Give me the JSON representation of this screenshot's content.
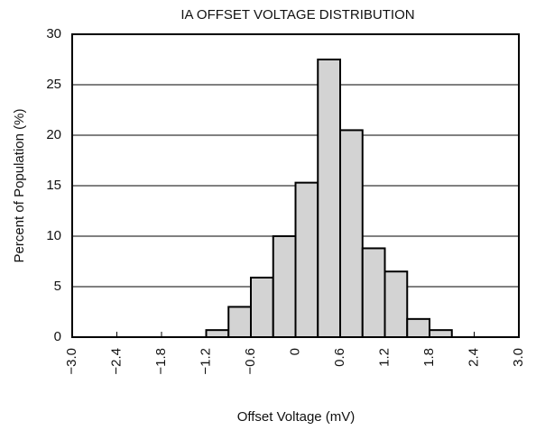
{
  "chart_data": {
    "type": "histogram",
    "title": "IA OFFSET VOLTAGE DISTRIBUTION",
    "x_label": "Offset Voltage (mV)",
    "y_label": "Percent of Population (%)",
    "bins": [
      -1.2,
      -0.9,
      -0.6,
      -0.3,
      0,
      0.3,
      0.6,
      0.9,
      1.2,
      1.5,
      1.8,
      2.1
    ],
    "values": [
      0.7,
      3,
      5.9,
      10,
      15.3,
      27.5,
      20.5,
      8.8,
      6.5,
      1.8,
      0.7
    ],
    "color": "#d3d3d3",
    "xlim": [
      -3,
      3
    ],
    "xticks": [
      {
        "value": -3,
        "label": "−3.0"
      },
      {
        "value": -2.4,
        "label": "−2.4"
      },
      {
        "value": -1.8,
        "label": "−1.8"
      },
      {
        "value": -1.2,
        "label": "−1.2"
      },
      {
        "value": -0.6,
        "label": "−0.6"
      },
      0,
      0.6,
      1.2,
      1.8,
      2.4,
      {
        "value": 3,
        "label": "3.0"
      }
    ],
    "ylim": [
      0,
      30
    ],
    "yticks": [
      0,
      5,
      10,
      15,
      20,
      25,
      30
    ],
    "grid": true
  }
}
